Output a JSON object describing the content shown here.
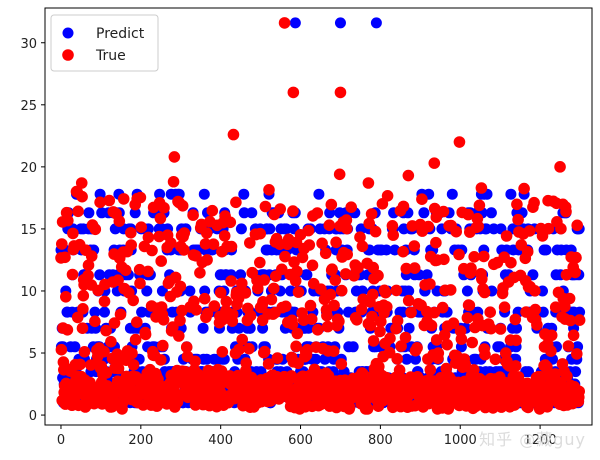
{
  "watermark": "知乎 @藏guy",
  "chart_data": {
    "type": "scatter",
    "title": "",
    "xlabel": "",
    "ylabel": "",
    "xlim": [
      -40,
      1330
    ],
    "ylim": [
      -0.8,
      32.8
    ],
    "x_ticks": [
      0,
      200,
      400,
      600,
      800,
      1000,
      1200
    ],
    "y_ticks": [
      0,
      5,
      10,
      15,
      20,
      25,
      30
    ],
    "grid": false,
    "legend": {
      "position": "top-left"
    },
    "n_points_per_series": 1300,
    "series": [
      {
        "name": "Predict",
        "color": "#0000ff",
        "marker_size": 5.5,
        "levels": [
          1.0,
          1.5,
          2.0,
          2.5,
          3.0,
          3.5,
          4.5,
          5.5,
          7.0,
          8.3,
          10.0,
          11.3,
          13.3,
          15.0,
          16.3,
          17.8
        ],
        "level_weights": [
          0.08,
          0.09,
          0.1,
          0.09,
          0.07,
          0.06,
          0.05,
          0.05,
          0.05,
          0.08,
          0.04,
          0.05,
          0.05,
          0.05,
          0.03,
          0.02
        ],
        "points": [
          {
            "x": 587,
            "y": 31.6
          },
          {
            "x": 700,
            "y": 31.6
          },
          {
            "x": 790,
            "y": 31.6
          }
        ]
      },
      {
        "name": "True",
        "color": "#ff0000",
        "marker_size": 5.8,
        "value_range": [
          0.5,
          22
        ],
        "points": [
          {
            "x": 560,
            "y": 31.6
          },
          {
            "x": 582,
            "y": 26.0
          },
          {
            "x": 700,
            "y": 26.0
          },
          {
            "x": 432,
            "y": 22.6
          },
          {
            "x": 998,
            "y": 22.0
          },
          {
            "x": 284,
            "y": 20.8
          },
          {
            "x": 935,
            "y": 20.3
          },
          {
            "x": 1250,
            "y": 20.0
          },
          {
            "x": 698,
            "y": 19.4
          },
          {
            "x": 870,
            "y": 19.3
          },
          {
            "x": 282,
            "y": 18.8
          },
          {
            "x": 52,
            "y": 18.7
          },
          {
            "x": 770,
            "y": 18.7
          }
        ]
      }
    ]
  }
}
